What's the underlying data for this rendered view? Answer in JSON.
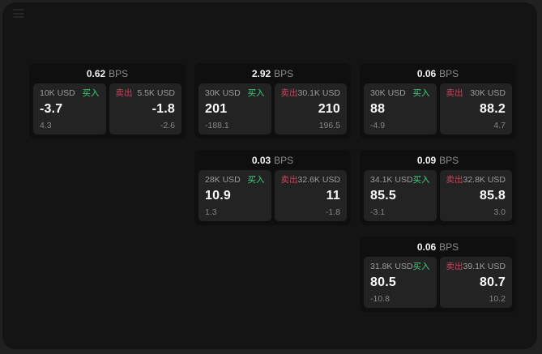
{
  "colors": {
    "buy": "#3bcf7c",
    "sell": "#c8435f"
  },
  "icons": {
    "menu": "menu-icon"
  },
  "cards": [
    {
      "bps_value": "0.62",
      "bps_unit": "BPS",
      "buy": {
        "amount": "10K USD",
        "side": "买入",
        "price": "-3.7",
        "delta": "4.3"
      },
      "sell": {
        "side": "卖出",
        "amount": "5.5K USD",
        "price": "-1.8",
        "delta": "-2.6"
      }
    },
    {
      "bps_value": "2.92",
      "bps_unit": "BPS",
      "buy": {
        "amount": "30K USD",
        "side": "买入",
        "price": "201",
        "delta": "-188.1"
      },
      "sell": {
        "side": "卖出",
        "amount": "30.1K USD",
        "price": "210",
        "delta": "196.5"
      }
    },
    {
      "bps_value": "0.06",
      "bps_unit": "BPS",
      "buy": {
        "amount": "30K USD",
        "side": "买入",
        "price": "88",
        "delta": "-4.9"
      },
      "sell": {
        "side": "卖出",
        "amount": "30K USD",
        "price": "88.2",
        "delta": "4.7"
      }
    },
    {
      "bps_value": "0.03",
      "bps_unit": "BPS",
      "buy": {
        "amount": "28K USD",
        "side": "买入",
        "price": "10.9",
        "delta": "1.3"
      },
      "sell": {
        "side": "卖出",
        "amount": "32.6K USD",
        "price": "11",
        "delta": "-1.8"
      }
    },
    {
      "bps_value": "0.09",
      "bps_unit": "BPS",
      "buy": {
        "amount": "34.1K USD",
        "side": "买入",
        "price": "85.5",
        "delta": "-3.1"
      },
      "sell": {
        "side": "卖出",
        "amount": "32.8K USD",
        "price": "85.8",
        "delta": "3.0"
      }
    },
    {
      "bps_value": "0.06",
      "bps_unit": "BPS",
      "buy": {
        "amount": "31.8K USD",
        "side": "买入",
        "price": "80.5",
        "delta": "-10.8"
      },
      "sell": {
        "side": "卖出",
        "amount": "39.1K USD",
        "price": "80.7",
        "delta": "10.2"
      }
    }
  ]
}
